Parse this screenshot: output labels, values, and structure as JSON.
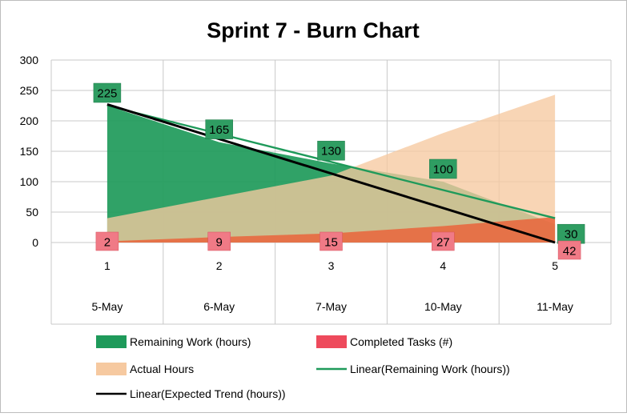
{
  "chart_data": {
    "type": "area",
    "title": "Sprint 7 - Burn Chart",
    "x_numbers": [
      "1",
      "2",
      "3",
      "4",
      "5"
    ],
    "categories": [
      "5-May",
      "6-May",
      "7-May",
      "10-May",
      "11-May"
    ],
    "ylim": [
      0,
      300
    ],
    "yticks": [
      0,
      50,
      100,
      150,
      200,
      250,
      300
    ],
    "grid": true,
    "legend_position": "bottom",
    "series": [
      {
        "name": "Remaining Work (hours)",
        "type": "area",
        "values": [
          225,
          165,
          130,
          100,
          30
        ],
        "color": "#1e9a5a",
        "labels": [
          "225",
          "165",
          "130",
          "100",
          "30"
        ]
      },
      {
        "name": "Actual Hours",
        "type": "area",
        "values": [
          40,
          75,
          110,
          180,
          243
        ],
        "color": "#f6c9a0"
      },
      {
        "name": "Completed Tasks (#)",
        "type": "area",
        "values": [
          2,
          9,
          15,
          27,
          42
        ],
        "color": "#e8663e",
        "labels": [
          "2",
          "9",
          "15",
          "27",
          "42"
        ]
      }
    ],
    "trendlines": [
      {
        "name": "Linear(Remaining Work (hours))",
        "from": 225,
        "to": 40,
        "color": "#1e9a5a"
      },
      {
        "name": "Linear(Expected Trend (hours))",
        "from": 227,
        "to": 0,
        "color": "#000000"
      }
    ],
    "legend": [
      {
        "label": "Remaining Work (hours)",
        "kind": "area",
        "color": "#1e9a5a"
      },
      {
        "label": "Completed Tasks (#)",
        "kind": "area",
        "color": "#ee4a5c"
      },
      {
        "label": "Actual Hours",
        "kind": "area",
        "color": "#f6c9a0"
      },
      {
        "label": "Linear(Remaining Work (hours))",
        "kind": "line",
        "color": "#1e9a5a"
      },
      {
        "label": "Linear(Expected Trend (hours))",
        "kind": "line",
        "color": "#000000"
      }
    ]
  }
}
